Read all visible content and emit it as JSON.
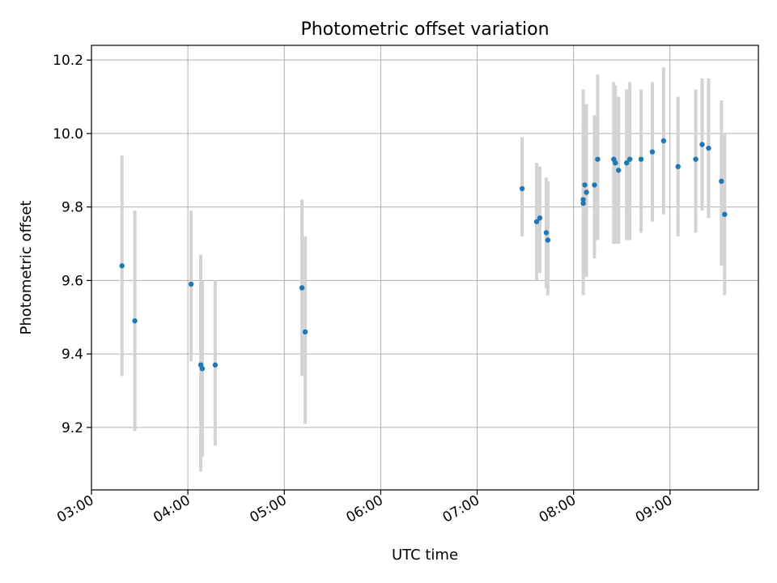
{
  "chart_data": {
    "type": "scatter",
    "title": "Photometric offset variation",
    "xlabel": "UTC time",
    "ylabel": "Photometric offset",
    "x_unit": "HH:MM",
    "xlim": [
      "03:00",
      "09:55"
    ],
    "ylim": [
      9.03,
      10.24
    ],
    "x_ticks": [
      "03:00",
      "04:00",
      "05:00",
      "06:00",
      "07:00",
      "08:00",
      "09:00"
    ],
    "y_ticks": [
      9.2,
      9.4,
      9.6,
      9.8,
      10.0,
      10.2
    ],
    "y_tick_labels": [
      "9.2",
      "9.4",
      "9.6",
      "9.8",
      "10.0",
      "10.2"
    ],
    "grid": true,
    "legend": "none",
    "colors": {
      "point": "#1f77b4",
      "errorbar": "#d3d3d3",
      "grid": "#b0b0b0"
    },
    "series": [
      {
        "points": [
          {
            "x": "03:19",
            "y": 9.64,
            "ymin": 9.34,
            "ymax": 9.94
          },
          {
            "x": "03:27",
            "y": 9.49,
            "ymin": 9.19,
            "ymax": 9.79
          },
          {
            "x": "04:02",
            "y": 9.59,
            "ymin": 9.38,
            "ymax": 9.79
          },
          {
            "x": "04:08",
            "y": 9.37,
            "ymin": 9.08,
            "ymax": 9.67
          },
          {
            "x": "04:09",
            "y": 9.36,
            "ymin": 9.12,
            "ymax": 9.6
          },
          {
            "x": "04:17",
            "y": 9.37,
            "ymin": 9.15,
            "ymax": 9.6
          },
          {
            "x": "05:11",
            "y": 9.58,
            "ymin": 9.34,
            "ymax": 9.82
          },
          {
            "x": "05:13",
            "y": 9.46,
            "ymin": 9.21,
            "ymax": 9.72
          },
          {
            "x": "07:28",
            "y": 9.85,
            "ymin": 9.72,
            "ymax": 9.99
          },
          {
            "x": "07:37",
            "y": 9.76,
            "ymin": 9.6,
            "ymax": 9.92
          },
          {
            "x": "07:39",
            "y": 9.77,
            "ymin": 9.62,
            "ymax": 9.91
          },
          {
            "x": "07:43",
            "y": 9.73,
            "ymin": 9.58,
            "ymax": 9.88
          },
          {
            "x": "07:44",
            "y": 9.71,
            "ymin": 9.56,
            "ymax": 9.87
          },
          {
            "x": "08:06",
            "y": 9.82,
            "ymin": 9.62,
            "ymax": 10.03
          },
          {
            "x": "08:06",
            "y": 9.81,
            "ymin": 9.56,
            "ymax": 10.12
          },
          {
            "x": "08:07",
            "y": 9.86,
            "ymin": 9.61,
            "ymax": 10.08
          },
          {
            "x": "08:08",
            "y": 9.84,
            "ymin": 9.61,
            "ymax": 10.08
          },
          {
            "x": "08:13",
            "y": 9.86,
            "ymin": 9.66,
            "ymax": 10.05
          },
          {
            "x": "08:15",
            "y": 9.93,
            "ymin": 9.71,
            "ymax": 10.16
          },
          {
            "x": "08:25",
            "y": 9.93,
            "ymin": 9.7,
            "ymax": 10.14
          },
          {
            "x": "08:26",
            "y": 9.92,
            "ymin": 9.7,
            "ymax": 10.13
          },
          {
            "x": "08:28",
            "y": 9.9,
            "ymin": 9.7,
            "ymax": 10.1
          },
          {
            "x": "08:33",
            "y": 9.92,
            "ymin": 9.71,
            "ymax": 10.12
          },
          {
            "x": "08:35",
            "y": 9.93,
            "ymin": 9.71,
            "ymax": 10.14
          },
          {
            "x": "08:42",
            "y": 9.93,
            "ymin": 9.73,
            "ymax": 10.12
          },
          {
            "x": "08:49",
            "y": 9.95,
            "ymin": 9.76,
            "ymax": 10.14
          },
          {
            "x": "08:56",
            "y": 9.98,
            "ymin": 9.78,
            "ymax": 10.18
          },
          {
            "x": "09:05",
            "y": 9.91,
            "ymin": 9.72,
            "ymax": 10.1
          },
          {
            "x": "09:16",
            "y": 9.93,
            "ymin": 9.73,
            "ymax": 10.12
          },
          {
            "x": "09:20",
            "y": 9.97,
            "ymin": 9.79,
            "ymax": 10.15
          },
          {
            "x": "09:24",
            "y": 9.96,
            "ymin": 9.77,
            "ymax": 10.15
          },
          {
            "x": "09:32",
            "y": 9.87,
            "ymin": 9.64,
            "ymax": 10.09
          },
          {
            "x": "09:34",
            "y": 9.78,
            "ymin": 9.56,
            "ymax": 10.0
          }
        ]
      }
    ]
  }
}
